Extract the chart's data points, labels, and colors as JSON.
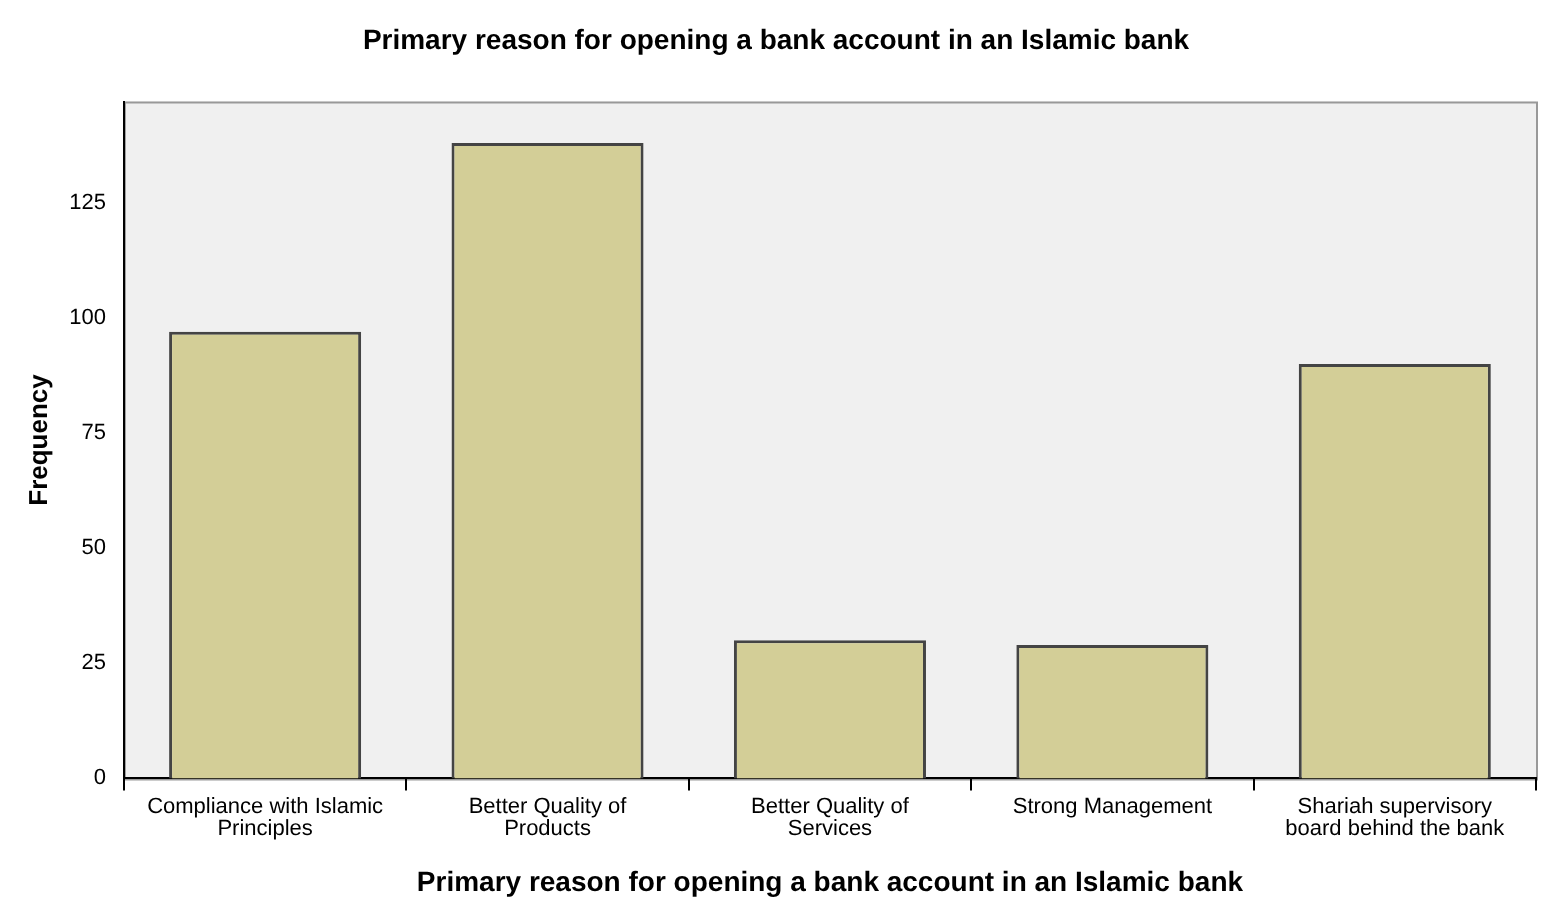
{
  "chart_data": {
    "type": "bar",
    "title": "Primary reason for opening a bank account in an Islamic bank",
    "xlabel": "Primary reason for opening a bank account in an Islamic bank",
    "ylabel": "Frequency",
    "categories": [
      "Compliance with Islamic Principles",
      "Better Quality of Products",
      "Better Quality of Services",
      "Strong Management",
      "Shariah supervisory board behind the bank"
    ],
    "values": [
      97,
      138,
      30,
      29,
      90
    ],
    "color": "#d3ce97",
    "ylim": [
      0,
      147
    ],
    "yticks": [
      0,
      25,
      50,
      75,
      100,
      125
    ],
    "grid": false,
    "legend": false
  }
}
